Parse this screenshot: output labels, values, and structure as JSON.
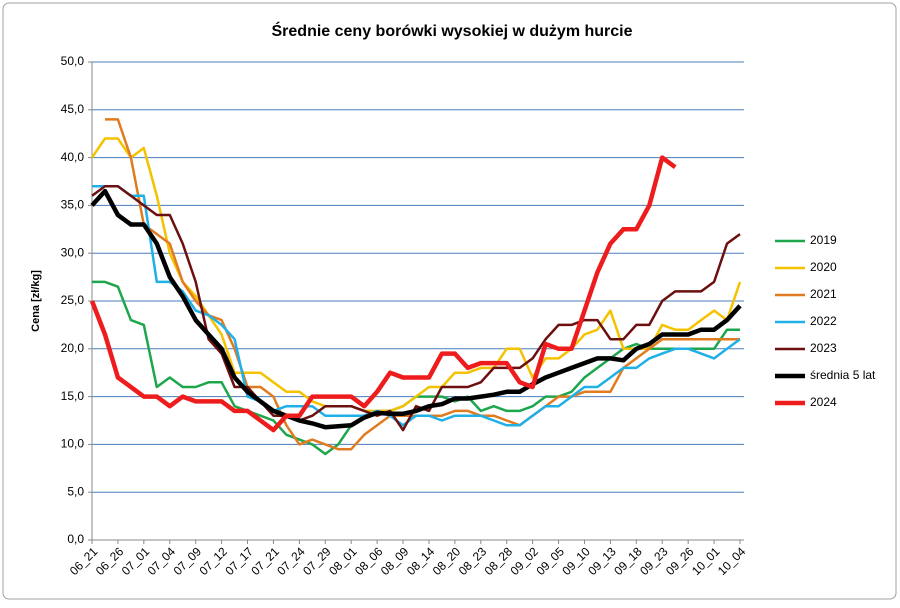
{
  "chart_data": {
    "type": "line",
    "title": "Średnie ceny borówki wysokiej w dużym hurcie",
    "y_label": "Cena [zł/kg]",
    "categories": [
      "06_21",
      null,
      "06_26",
      null,
      "07_01",
      null,
      "07_04",
      null,
      "07_09",
      null,
      "07_12",
      null,
      "07_17",
      null,
      "07_21",
      null,
      "07_24",
      null,
      "07_29",
      null,
      "08_01",
      null,
      "08_06",
      null,
      "08_09",
      null,
      "08_14",
      null,
      "08_20",
      null,
      "08_23",
      null,
      "08_28",
      null,
      "09_02",
      null,
      "09_05",
      null,
      "09_10",
      null,
      "09_13",
      null,
      "09_18",
      null,
      "09_23",
      null,
      "09_26",
      null,
      "10_01",
      null,
      "10_04"
    ],
    "ylim": [
      0,
      50
    ],
    "yticks": [
      {
        "value": 0,
        "label": "0,0"
      },
      {
        "value": 5,
        "label": "5,0"
      },
      {
        "value": 10,
        "label": "10,0"
      },
      {
        "value": 15,
        "label": "15,0"
      },
      {
        "value": 20,
        "label": "20,0"
      },
      {
        "value": 25,
        "label": "25,0"
      },
      {
        "value": 30,
        "label": "30,0"
      },
      {
        "value": 35,
        "label": "35,0"
      },
      {
        "value": 40,
        "label": "40,0"
      },
      {
        "value": 45,
        "label": "45,0"
      },
      {
        "value": 50,
        "label": "50,0"
      }
    ],
    "grid": true,
    "legend": "right",
    "series": [
      {
        "name": "2019",
        "color": "#1ea64c",
        "width": 2.5,
        "values": [
          27,
          27,
          26.5,
          23,
          22.5,
          16,
          17,
          16,
          16,
          16.5,
          16.5,
          14,
          13.5,
          13,
          12.5,
          11,
          10.5,
          10,
          9,
          10,
          12,
          13,
          13.5,
          13.5,
          14,
          15,
          15,
          15,
          14.5,
          15,
          13.5,
          14,
          13.5,
          13.5,
          14,
          15,
          15,
          15.5,
          17,
          18,
          19,
          20,
          20.5,
          20,
          20,
          20,
          20,
          20,
          20,
          22,
          22
        ]
      },
      {
        "name": "2020",
        "color": "#f5c200",
        "width": 2.5,
        "values": [
          40,
          42,
          42,
          40,
          41,
          36,
          30,
          27,
          25.5,
          23.5,
          21.5,
          17.5,
          17.5,
          17.5,
          16.5,
          15.5,
          15.5,
          14.5,
          14,
          14,
          14,
          13.5,
          13.5,
          13.5,
          14,
          15,
          16,
          16,
          17.5,
          17.5,
          18,
          18,
          20,
          20,
          17,
          19,
          19,
          20,
          21.5,
          22,
          24,
          20,
          20,
          20,
          22.5,
          22,
          22,
          23,
          24,
          23,
          27
        ]
      },
      {
        "name": "2021",
        "color": "#e07b20",
        "width": 2.5,
        "values": [
          null,
          44,
          44,
          40,
          33,
          32,
          31,
          27,
          25,
          23.5,
          23,
          20,
          16,
          16,
          15,
          12,
          10,
          10.5,
          10,
          9.5,
          9.5,
          11,
          12,
          13,
          13,
          13,
          13,
          13,
          13.5,
          13.5,
          13,
          13,
          12.5,
          12,
          13,
          14,
          15,
          15,
          15.5,
          15.5,
          15.5,
          18,
          19,
          20,
          21,
          21,
          21,
          21,
          21,
          21,
          21
        ]
      },
      {
        "name": "2022",
        "color": "#1fb0e8",
        "width": 2.5,
        "values": [
          37,
          37,
          37,
          36,
          36,
          27,
          27,
          26,
          24,
          23.5,
          22.5,
          21,
          15,
          14.5,
          13.5,
          14,
          14,
          14,
          13,
          13,
          13,
          13,
          13.5,
          13,
          12,
          13,
          13,
          12.5,
          13,
          13,
          13,
          12.5,
          12,
          12,
          13,
          14,
          14,
          15,
          16,
          16,
          17,
          18,
          18,
          19,
          19.5,
          20,
          20,
          19.5,
          19,
          20,
          21
        ]
      },
      {
        "name": "2023",
        "color": "#6b0f0f",
        "width": 2.5,
        "values": [
          36,
          37,
          37,
          36,
          35,
          34,
          34,
          31,
          27,
          21,
          19.5,
          16,
          16,
          14.5,
          13,
          13,
          12.5,
          13,
          14,
          14,
          14,
          13.5,
          13,
          13.5,
          11.5,
          14,
          13.5,
          16,
          16,
          16,
          16.5,
          18,
          18,
          18,
          19,
          21,
          22.5,
          22.5,
          23,
          23,
          21,
          21,
          22.5,
          22.5,
          25,
          26,
          26,
          26,
          27,
          31,
          32
        ]
      },
      {
        "name": "średnia 5 lat",
        "color": "#000000",
        "width": 4.5,
        "values": [
          35,
          36.5,
          34,
          33,
          33,
          31,
          27.5,
          25.5,
          23,
          21.5,
          20,
          17,
          15.5,
          14.5,
          13.5,
          13,
          12.5,
          12.2,
          11.8,
          11.9,
          12,
          12.8,
          13.3,
          13.2,
          13.2,
          13.5,
          14,
          14.2,
          14.8,
          14.8,
          15,
          15.2,
          15.5,
          15.5,
          16.3,
          17,
          17.5,
          18,
          18.5,
          19,
          19,
          18.8,
          20,
          20.5,
          21.5,
          21.5,
          21.5,
          22,
          22,
          23,
          24.5
        ]
      },
      {
        "name": "2024",
        "color": "#ee1c1c",
        "width": 4.5,
        "values": [
          25,
          21.5,
          17,
          16,
          15,
          15,
          14,
          15,
          14.5,
          14.5,
          14.5,
          13.5,
          13.5,
          12.5,
          11.5,
          13,
          13,
          15,
          15,
          15,
          15,
          14,
          15.5,
          17.5,
          17,
          17,
          17,
          19.5,
          19.5,
          18,
          18.5,
          18.5,
          18.5,
          16.5,
          16,
          20.5,
          20,
          20,
          24,
          28,
          31,
          32.5,
          32.5,
          35,
          40,
          39,
          null,
          null,
          null,
          null,
          null
        ]
      }
    ]
  }
}
